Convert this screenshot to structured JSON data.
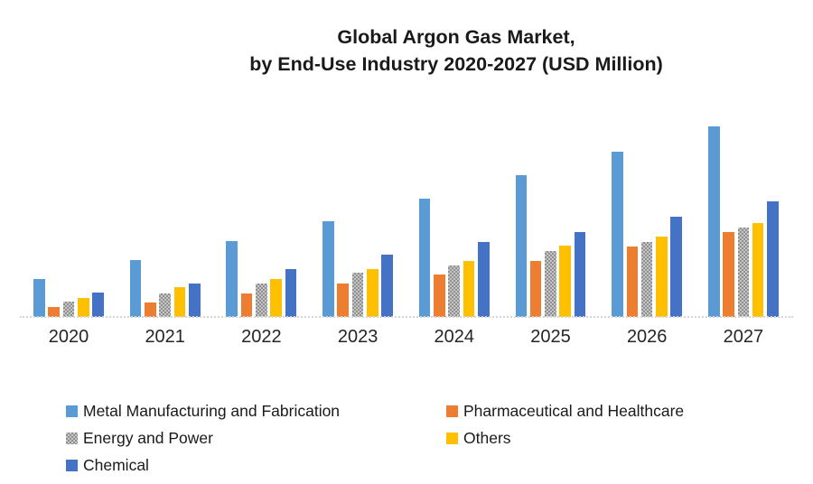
{
  "chart_data": {
    "type": "bar",
    "title_line1": "Global Argon Gas Market,",
    "title_line2": "by End-Use Industry 2020-2027 (USD Million)",
    "xlabel": "",
    "ylabel": "",
    "units": "USD Million (value axis not shown; values estimated from bar heights, relative scale)",
    "categories": [
      "2020",
      "2021",
      "2022",
      "2023",
      "2024",
      "2025",
      "2026",
      "2027"
    ],
    "series": [
      {
        "id": "metal",
        "name": "Metal Manufacturing and Fabrication",
        "color": "#5B9BD5",
        "pattern": "solid",
        "values": [
          42,
          63,
          84,
          106,
          131,
          157,
          183,
          211
        ]
      },
      {
        "id": "pharma",
        "name": "Pharmaceutical and Healthcare",
        "color": "#ED7D31",
        "pattern": "solid",
        "values": [
          11,
          16,
          26,
          37,
          47,
          62,
          78,
          94
        ]
      },
      {
        "id": "energy",
        "name": "Energy and Power",
        "color": "#A5A5A5",
        "pattern": "checker",
        "values": [
          17,
          26,
          37,
          49,
          57,
          73,
          83,
          99
        ]
      },
      {
        "id": "others",
        "name": "Others",
        "color": "#FFC000",
        "pattern": "solid",
        "values": [
          21,
          33,
          42,
          53,
          62,
          79,
          89,
          104
        ]
      },
      {
        "id": "chemical",
        "name": "Chemical",
        "color": "#4472C4",
        "pattern": "solid",
        "values": [
          27,
          37,
          53,
          69,
          83,
          94,
          111,
          128
        ]
      }
    ],
    "ylim": [
      0,
      230
    ],
    "grid": false,
    "legend_position": "bottom",
    "axis_color": "#d6d6d6",
    "text_color": "#262626"
  }
}
